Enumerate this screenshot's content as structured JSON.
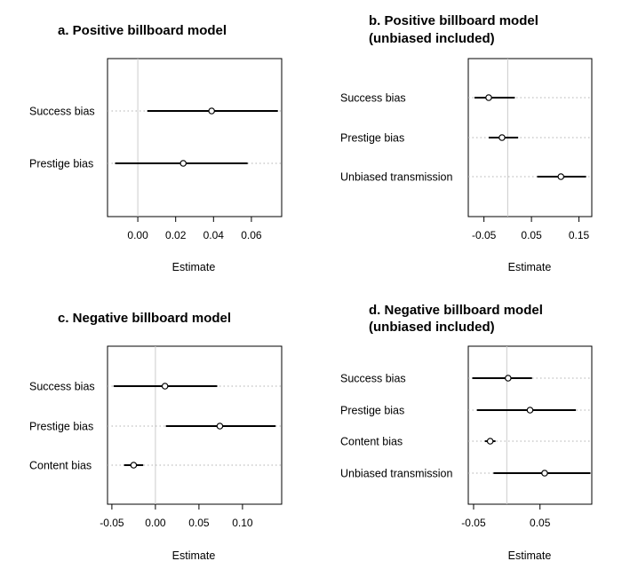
{
  "chart_data": [
    {
      "type": "forest",
      "title": "a. Positive billboard model",
      "subtitle": "",
      "xlabel": "Estimate",
      "xlim": [
        -0.016,
        0.076
      ],
      "xticks": [
        0.0,
        0.02,
        0.04,
        0.06
      ],
      "xtick_labels": [
        "0.00",
        "0.02",
        "0.04",
        "0.06"
      ],
      "zero_line": true,
      "items": [
        {
          "label": "Success bias",
          "estimate": 0.039,
          "low": 0.005,
          "high": 0.074
        },
        {
          "label": "Prestige bias",
          "estimate": 0.024,
          "low": -0.012,
          "high": 0.058
        }
      ]
    },
    {
      "type": "forest",
      "title": "b. Positive billboard model",
      "subtitle": "(unbiased included)",
      "xlabel": "Estimate",
      "xlim": [
        -0.083,
        0.177
      ],
      "xticks": [
        -0.05,
        0.05,
        0.15
      ],
      "xtick_labels": [
        "-0.05",
        "0.05",
        "0.15"
      ],
      "zero_line": true,
      "items": [
        {
          "label": "Success bias",
          "estimate": -0.04,
          "low": -0.07,
          "high": 0.015
        },
        {
          "label": "Prestige bias",
          "estimate": -0.012,
          "low": -0.04,
          "high": 0.022
        },
        {
          "label": "Unbiased transmission",
          "estimate": 0.112,
          "low": 0.062,
          "high": 0.165
        }
      ]
    },
    {
      "type": "forest",
      "title": "c. Negative billboard model",
      "subtitle": "",
      "xlabel": "Estimate",
      "xlim": [
        -0.055,
        0.145
      ],
      "xticks": [
        -0.05,
        0.0,
        0.05,
        0.1
      ],
      "xtick_labels": [
        "-0.05",
        "0.00",
        "0.05",
        "0.10"
      ],
      "zero_line": true,
      "items": [
        {
          "label": "Success bias",
          "estimate": 0.011,
          "low": -0.048,
          "high": 0.071
        },
        {
          "label": "Prestige bias",
          "estimate": 0.074,
          "low": 0.012,
          "high": 0.138
        },
        {
          "label": "Content bias",
          "estimate": -0.025,
          "low": -0.036,
          "high": -0.014
        }
      ]
    },
    {
      "type": "forest",
      "title": "d. Negative billboard model",
      "subtitle": "(unbiased included)",
      "xlabel": "Estimate",
      "xlim": [
        -0.058,
        0.128
      ],
      "xticks": [
        -0.05,
        0.05
      ],
      "xtick_labels": [
        "-0.05",
        "0.05"
      ],
      "zero_line": true,
      "items": [
        {
          "label": "Success bias",
          "estimate": 0.002,
          "low": -0.052,
          "high": 0.038
        },
        {
          "label": "Prestige bias",
          "estimate": 0.035,
          "low": -0.045,
          "high": 0.104
        },
        {
          "label": "Content bias",
          "estimate": -0.025,
          "low": -0.033,
          "high": -0.017
        },
        {
          "label": "Unbiased transmission",
          "estimate": 0.057,
          "low": -0.02,
          "high": 0.126
        }
      ]
    }
  ]
}
